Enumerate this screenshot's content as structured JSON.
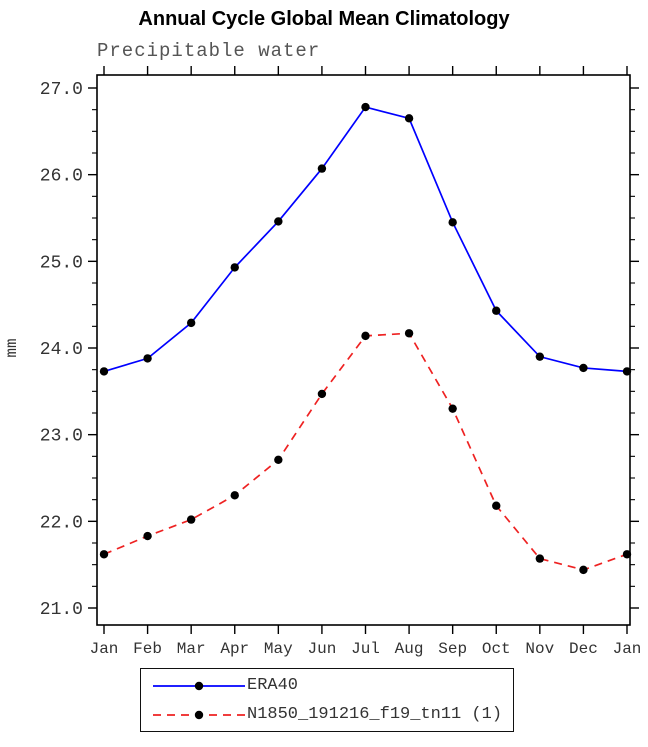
{
  "chart_data": {
    "type": "line",
    "title": "Annual Cycle Global Mean Climatology",
    "subtitle": "Precipitable water",
    "ylabel": "mm",
    "categories": [
      "Jan",
      "Feb",
      "Mar",
      "Apr",
      "May",
      "Jun",
      "Jul",
      "Aug",
      "Sep",
      "Oct",
      "Nov",
      "Dec",
      "Jan"
    ],
    "ylim": [
      21.0,
      27.0
    ],
    "ytick_labels": [
      "21.0",
      "22.0",
      "23.0",
      "24.0",
      "25.0",
      "26.0",
      "27.0"
    ],
    "yminor_step": 0.25,
    "grid": false,
    "legend_position": "bottom",
    "axis_color": "#000000",
    "tick_label_color": "#333333",
    "marker_color": "#000000",
    "series": [
      {
        "name": "ERA40",
        "color": "#0000ff",
        "style": "solid",
        "values": [
          23.73,
          23.88,
          24.29,
          24.93,
          25.46,
          26.07,
          26.78,
          26.65,
          25.45,
          24.43,
          23.9,
          23.77,
          23.73
        ]
      },
      {
        "name": "N1850_191216_f19_tn11 (1)",
        "color": "#ee2222",
        "style": "dashed",
        "values": [
          21.62,
          21.83,
          22.02,
          22.3,
          22.71,
          23.47,
          24.14,
          24.17,
          23.3,
          22.18,
          21.57,
          21.44,
          21.62
        ]
      }
    ]
  }
}
